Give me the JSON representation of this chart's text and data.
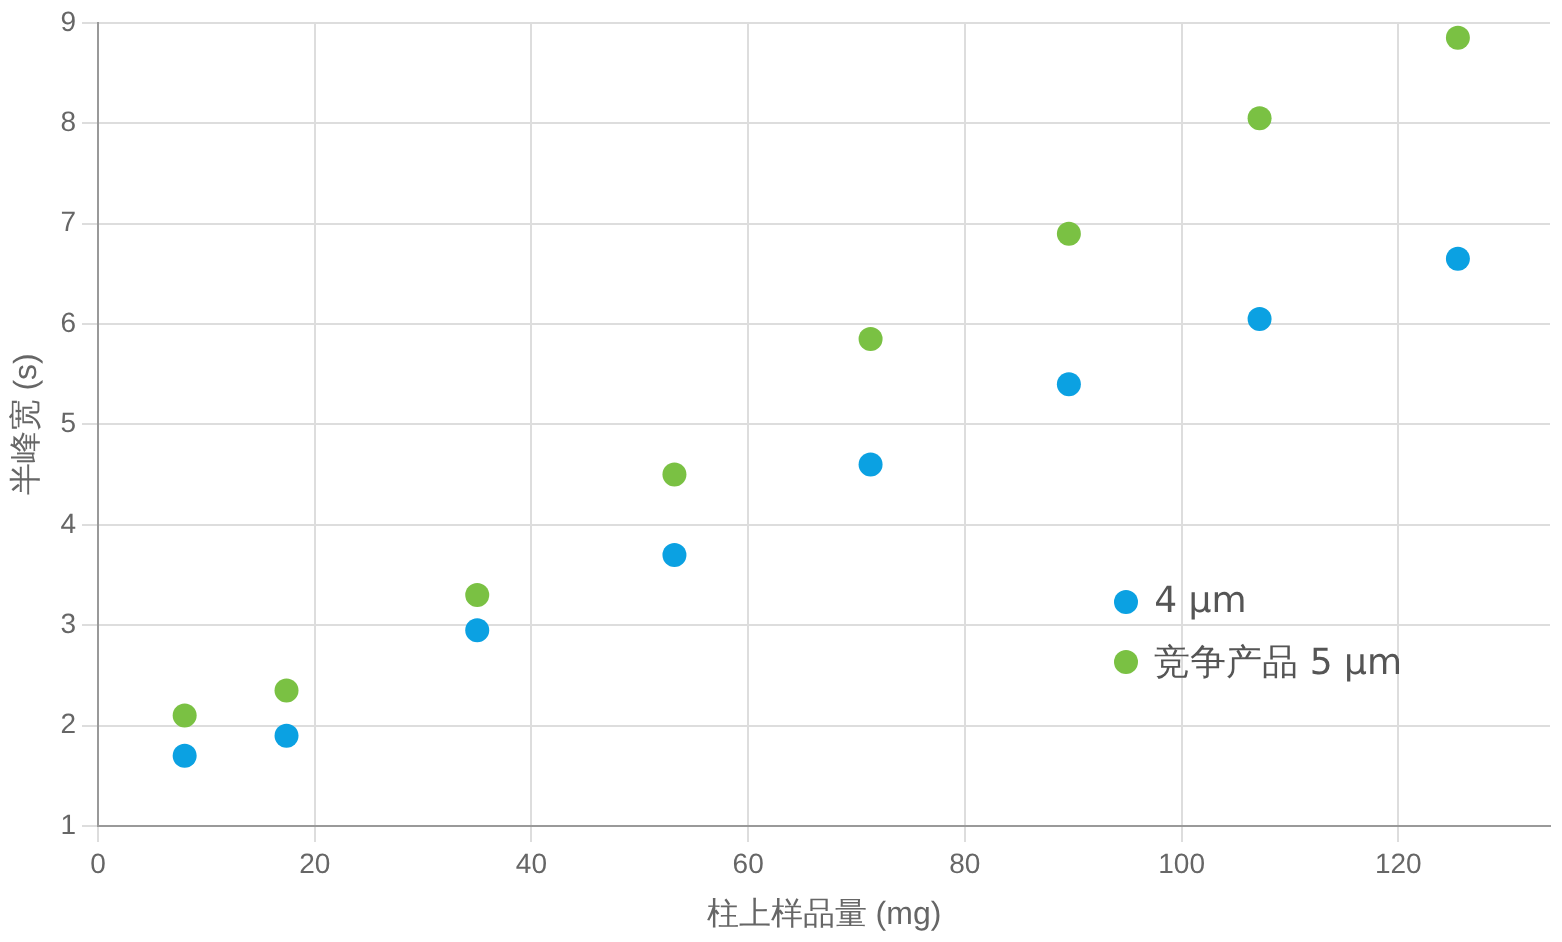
{
  "chart_data": {
    "type": "scatter",
    "xlabel": "柱上样品量 (mg)",
    "ylabel": "半峰宽 (s)",
    "x": [
      8,
      17.4,
      35,
      53.2,
      71.3,
      89.6,
      107.2,
      125.5
    ],
    "series": [
      {
        "name": "4 µm",
        "color": "#0ba1e2",
        "values": [
          1.7,
          1.9,
          2.95,
          3.7,
          4.6,
          5.4,
          6.05,
          6.65
        ]
      },
      {
        "name": "竞争产品 5 µm",
        "color": "#7ac143",
        "values": [
          2.1,
          2.35,
          3.3,
          4.5,
          5.85,
          6.9,
          8.05,
          8.85
        ]
      }
    ],
    "xlim": [
      0,
      134
    ],
    "xticks": [
      0,
      20,
      40,
      60,
      80,
      100,
      120
    ],
    "ylim": [
      1,
      9
    ],
    "yticks": [
      1,
      2,
      3,
      4,
      5,
      6,
      7,
      8,
      9
    ],
    "grid": true,
    "legend": "bottom right",
    "marker": "circle"
  }
}
